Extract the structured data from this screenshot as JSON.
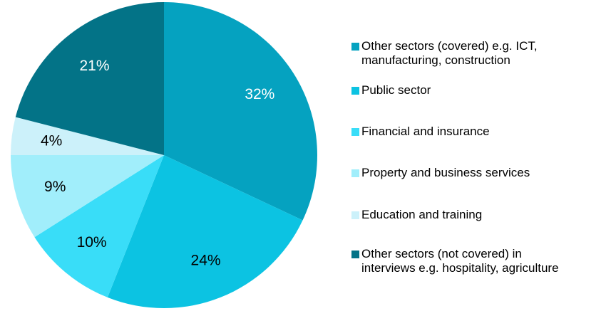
{
  "chart_data": {
    "type": "pie",
    "title": "",
    "start_angle_deg": 0,
    "direction": "clockwise",
    "legend_position": "right",
    "slices": [
      {
        "label": "Other sectors (covered) e.g. ICT, manufacturing, construction",
        "value": 32,
        "value_label": "32%",
        "color": "#05A2C0",
        "label_color": "#ffffff"
      },
      {
        "label": "Public sector",
        "value": 24,
        "value_label": "24%",
        "color": "#0CC3E2",
        "label_color": "#000000"
      },
      {
        "label": "Financial and insurance",
        "value": 10,
        "value_label": "10%",
        "color": "#39DDF8",
        "label_color": "#000000"
      },
      {
        "label": "Property and business services",
        "value": 9,
        "value_label": "9%",
        "color": "#A1EEFB",
        "label_color": "#000000"
      },
      {
        "label": "Education and training",
        "value": 4,
        "value_label": "4%",
        "color": "#CCF1FA",
        "label_color": "#000000"
      },
      {
        "label": "Other sectors (not covered) in interviews e.g. hospitality, agriculture",
        "value": 21,
        "value_label": "21%",
        "color": "#037387",
        "label_color": "#ffffff"
      }
    ]
  },
  "legend": {
    "items": [
      {
        "text": "Other sectors (covered) e.g. ICT,\nmanufacturing, construction",
        "color": "#05A2C0"
      },
      {
        "text": "Public sector",
        "color": "#0CC3E2"
      },
      {
        "text": "Financial and insurance",
        "color": "#39DDF8"
      },
      {
        "text": "Property and business services",
        "color": "#A1EEFB"
      },
      {
        "text": "Education and training",
        "color": "#CCF1FA"
      },
      {
        "text": "Other sectors (not covered) in\ninterviews e.g. hospitality, agriculture",
        "color": "#037387"
      }
    ]
  }
}
